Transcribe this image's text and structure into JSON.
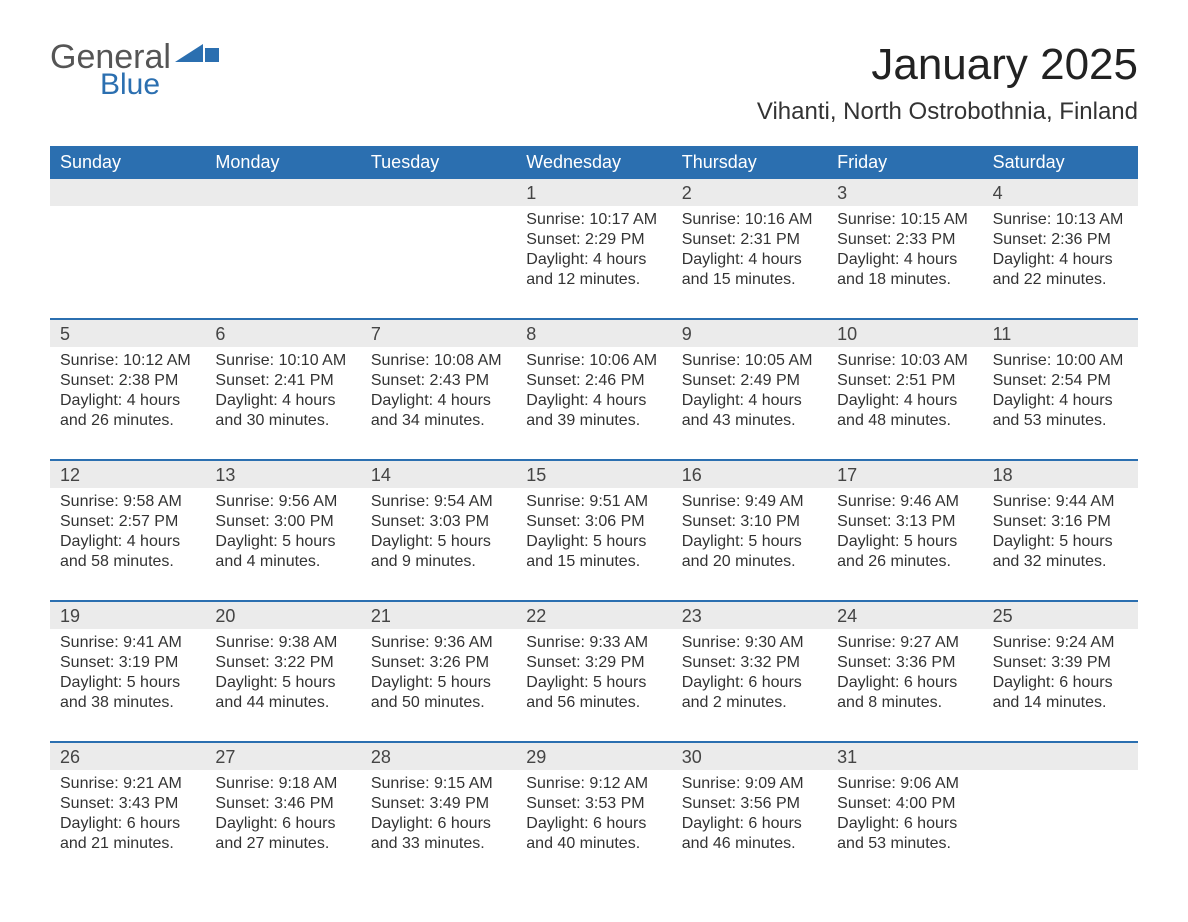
{
  "logo": {
    "line1": "General",
    "line2": "Blue",
    "shape_color": "#2b6fb0",
    "text_color_1": "#555555",
    "text_color_2": "#2b6fb0"
  },
  "title": "January 2025",
  "location": "Vihanti, North Ostrobothnia, Finland",
  "colors": {
    "header_bg": "#2b6fb0",
    "header_text": "#ffffff",
    "daynum_bg": "#ebebeb",
    "border": "#2b6fb0",
    "body_text": "#333333"
  },
  "days_of_week": [
    "Sunday",
    "Monday",
    "Tuesday",
    "Wednesday",
    "Thursday",
    "Friday",
    "Saturday"
  ],
  "weeks": [
    {
      "nums": [
        "",
        "",
        "",
        "1",
        "2",
        "3",
        "4"
      ],
      "cells": [
        null,
        null,
        null,
        {
          "sunrise": "Sunrise: 10:17 AM",
          "sunset": "Sunset: 2:29 PM",
          "dl1": "Daylight: 4 hours",
          "dl2": "and 12 minutes."
        },
        {
          "sunrise": "Sunrise: 10:16 AM",
          "sunset": "Sunset: 2:31 PM",
          "dl1": "Daylight: 4 hours",
          "dl2": "and 15 minutes."
        },
        {
          "sunrise": "Sunrise: 10:15 AM",
          "sunset": "Sunset: 2:33 PM",
          "dl1": "Daylight: 4 hours",
          "dl2": "and 18 minutes."
        },
        {
          "sunrise": "Sunrise: 10:13 AM",
          "sunset": "Sunset: 2:36 PM",
          "dl1": "Daylight: 4 hours",
          "dl2": "and 22 minutes."
        }
      ]
    },
    {
      "nums": [
        "5",
        "6",
        "7",
        "8",
        "9",
        "10",
        "11"
      ],
      "cells": [
        {
          "sunrise": "Sunrise: 10:12 AM",
          "sunset": "Sunset: 2:38 PM",
          "dl1": "Daylight: 4 hours",
          "dl2": "and 26 minutes."
        },
        {
          "sunrise": "Sunrise: 10:10 AM",
          "sunset": "Sunset: 2:41 PM",
          "dl1": "Daylight: 4 hours",
          "dl2": "and 30 minutes."
        },
        {
          "sunrise": "Sunrise: 10:08 AM",
          "sunset": "Sunset: 2:43 PM",
          "dl1": "Daylight: 4 hours",
          "dl2": "and 34 minutes."
        },
        {
          "sunrise": "Sunrise: 10:06 AM",
          "sunset": "Sunset: 2:46 PM",
          "dl1": "Daylight: 4 hours",
          "dl2": "and 39 minutes."
        },
        {
          "sunrise": "Sunrise: 10:05 AM",
          "sunset": "Sunset: 2:49 PM",
          "dl1": "Daylight: 4 hours",
          "dl2": "and 43 minutes."
        },
        {
          "sunrise": "Sunrise: 10:03 AM",
          "sunset": "Sunset: 2:51 PM",
          "dl1": "Daylight: 4 hours",
          "dl2": "and 48 minutes."
        },
        {
          "sunrise": "Sunrise: 10:00 AM",
          "sunset": "Sunset: 2:54 PM",
          "dl1": "Daylight: 4 hours",
          "dl2": "and 53 minutes."
        }
      ]
    },
    {
      "nums": [
        "12",
        "13",
        "14",
        "15",
        "16",
        "17",
        "18"
      ],
      "cells": [
        {
          "sunrise": "Sunrise: 9:58 AM",
          "sunset": "Sunset: 2:57 PM",
          "dl1": "Daylight: 4 hours",
          "dl2": "and 58 minutes."
        },
        {
          "sunrise": "Sunrise: 9:56 AM",
          "sunset": "Sunset: 3:00 PM",
          "dl1": "Daylight: 5 hours",
          "dl2": "and 4 minutes."
        },
        {
          "sunrise": "Sunrise: 9:54 AM",
          "sunset": "Sunset: 3:03 PM",
          "dl1": "Daylight: 5 hours",
          "dl2": "and 9 minutes."
        },
        {
          "sunrise": "Sunrise: 9:51 AM",
          "sunset": "Sunset: 3:06 PM",
          "dl1": "Daylight: 5 hours",
          "dl2": "and 15 minutes."
        },
        {
          "sunrise": "Sunrise: 9:49 AM",
          "sunset": "Sunset: 3:10 PM",
          "dl1": "Daylight: 5 hours",
          "dl2": "and 20 minutes."
        },
        {
          "sunrise": "Sunrise: 9:46 AM",
          "sunset": "Sunset: 3:13 PM",
          "dl1": "Daylight: 5 hours",
          "dl2": "and 26 minutes."
        },
        {
          "sunrise": "Sunrise: 9:44 AM",
          "sunset": "Sunset: 3:16 PM",
          "dl1": "Daylight: 5 hours",
          "dl2": "and 32 minutes."
        }
      ]
    },
    {
      "nums": [
        "19",
        "20",
        "21",
        "22",
        "23",
        "24",
        "25"
      ],
      "cells": [
        {
          "sunrise": "Sunrise: 9:41 AM",
          "sunset": "Sunset: 3:19 PM",
          "dl1": "Daylight: 5 hours",
          "dl2": "and 38 minutes."
        },
        {
          "sunrise": "Sunrise: 9:38 AM",
          "sunset": "Sunset: 3:22 PM",
          "dl1": "Daylight: 5 hours",
          "dl2": "and 44 minutes."
        },
        {
          "sunrise": "Sunrise: 9:36 AM",
          "sunset": "Sunset: 3:26 PM",
          "dl1": "Daylight: 5 hours",
          "dl2": "and 50 minutes."
        },
        {
          "sunrise": "Sunrise: 9:33 AM",
          "sunset": "Sunset: 3:29 PM",
          "dl1": "Daylight: 5 hours",
          "dl2": "and 56 minutes."
        },
        {
          "sunrise": "Sunrise: 9:30 AM",
          "sunset": "Sunset: 3:32 PM",
          "dl1": "Daylight: 6 hours",
          "dl2": "and 2 minutes."
        },
        {
          "sunrise": "Sunrise: 9:27 AM",
          "sunset": "Sunset: 3:36 PM",
          "dl1": "Daylight: 6 hours",
          "dl2": "and 8 minutes."
        },
        {
          "sunrise": "Sunrise: 9:24 AM",
          "sunset": "Sunset: 3:39 PM",
          "dl1": "Daylight: 6 hours",
          "dl2": "and 14 minutes."
        }
      ]
    },
    {
      "nums": [
        "26",
        "27",
        "28",
        "29",
        "30",
        "31",
        ""
      ],
      "cells": [
        {
          "sunrise": "Sunrise: 9:21 AM",
          "sunset": "Sunset: 3:43 PM",
          "dl1": "Daylight: 6 hours",
          "dl2": "and 21 minutes."
        },
        {
          "sunrise": "Sunrise: 9:18 AM",
          "sunset": "Sunset: 3:46 PM",
          "dl1": "Daylight: 6 hours",
          "dl2": "and 27 minutes."
        },
        {
          "sunrise": "Sunrise: 9:15 AM",
          "sunset": "Sunset: 3:49 PM",
          "dl1": "Daylight: 6 hours",
          "dl2": "and 33 minutes."
        },
        {
          "sunrise": "Sunrise: 9:12 AM",
          "sunset": "Sunset: 3:53 PM",
          "dl1": "Daylight: 6 hours",
          "dl2": "and 40 minutes."
        },
        {
          "sunrise": "Sunrise: 9:09 AM",
          "sunset": "Sunset: 3:56 PM",
          "dl1": "Daylight: 6 hours",
          "dl2": "and 46 minutes."
        },
        {
          "sunrise": "Sunrise: 9:06 AM",
          "sunset": "Sunset: 4:00 PM",
          "dl1": "Daylight: 6 hours",
          "dl2": "and 53 minutes."
        },
        null
      ]
    }
  ]
}
